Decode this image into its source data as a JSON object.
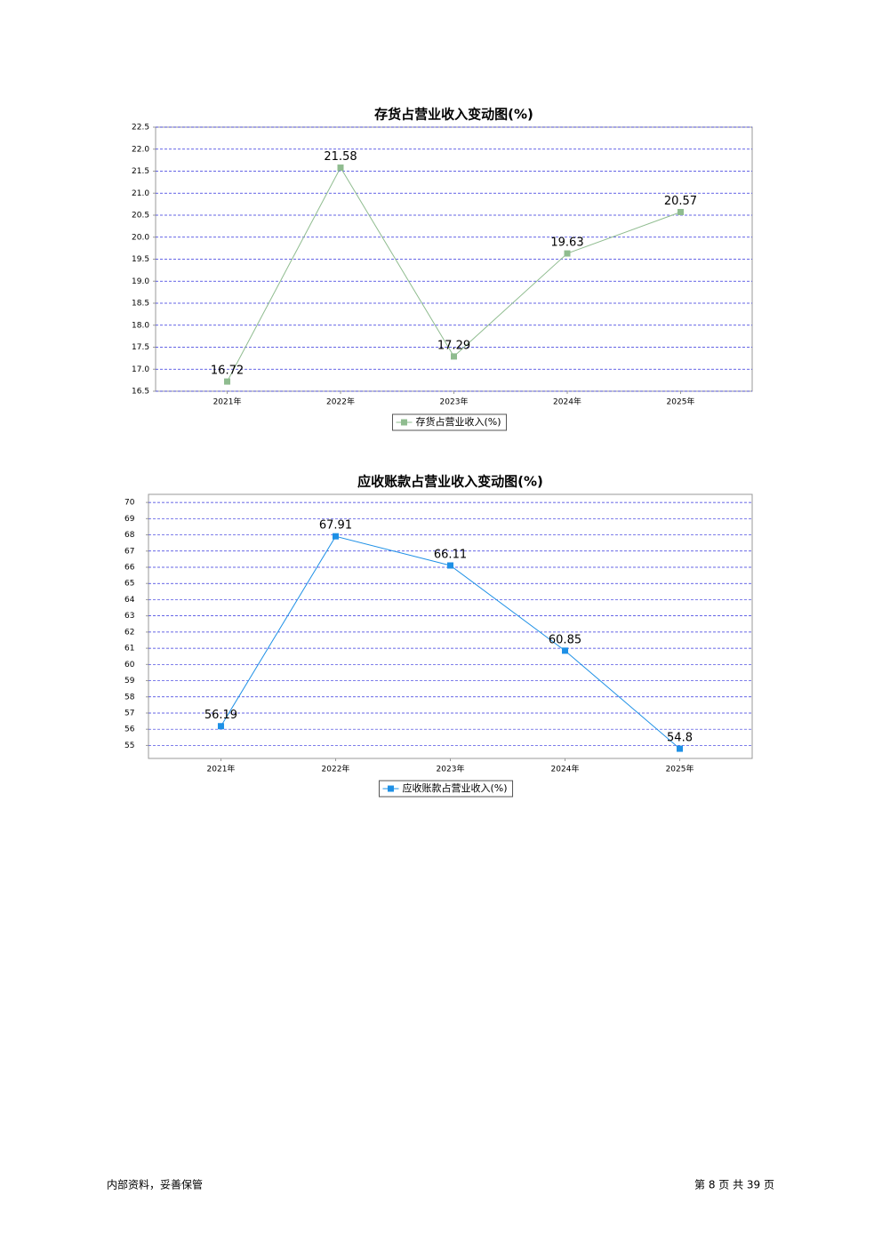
{
  "chart_data": [
    {
      "type": "line",
      "title": "存货占营业收入变动图(%)",
      "categories": [
        "2021年",
        "2022年",
        "2023年",
        "2024年",
        "2025年"
      ],
      "series": [
        {
          "name": "存货占营业收入(%)",
          "color": "#8fbc8f",
          "values": [
            16.72,
            21.58,
            17.29,
            19.63,
            20.57
          ]
        }
      ],
      "ylim": [
        16.5,
        22.5
      ],
      "yticks": [
        16.5,
        {
          "value": 17,
          "label": "17.0"
        },
        17.5,
        {
          "value": 18,
          "label": "18.0"
        },
        18.5,
        {
          "value": 19,
          "label": "19.0"
        },
        19.5,
        {
          "value": 20,
          "label": "20.0"
        },
        20.5,
        {
          "value": 21,
          "label": "21.0"
        },
        21.5,
        {
          "value": 22,
          "label": "22.0"
        },
        22.5
      ],
      "grid": true
    },
    {
      "type": "line",
      "title": "应收账款占营业收入变动图(%)",
      "categories": [
        "2021年",
        "2022年",
        "2023年",
        "2024年",
        "2025年"
      ],
      "series": [
        {
          "name": "应收账款占营业收入(%)",
          "color": "#1e90e6",
          "values": [
            56.19,
            67.91,
            66.11,
            60.85,
            54.8
          ]
        }
      ],
      "ylim": [
        54.2,
        70.5
      ],
      "yticks": [
        55,
        56,
        57,
        58,
        59,
        60,
        61,
        62,
        63,
        64,
        65,
        66,
        67,
        68,
        69,
        70
      ],
      "grid": true
    }
  ],
  "footer": {
    "left": "内部资料，妥善保管",
    "right": "第 8 页   共 39 页"
  }
}
